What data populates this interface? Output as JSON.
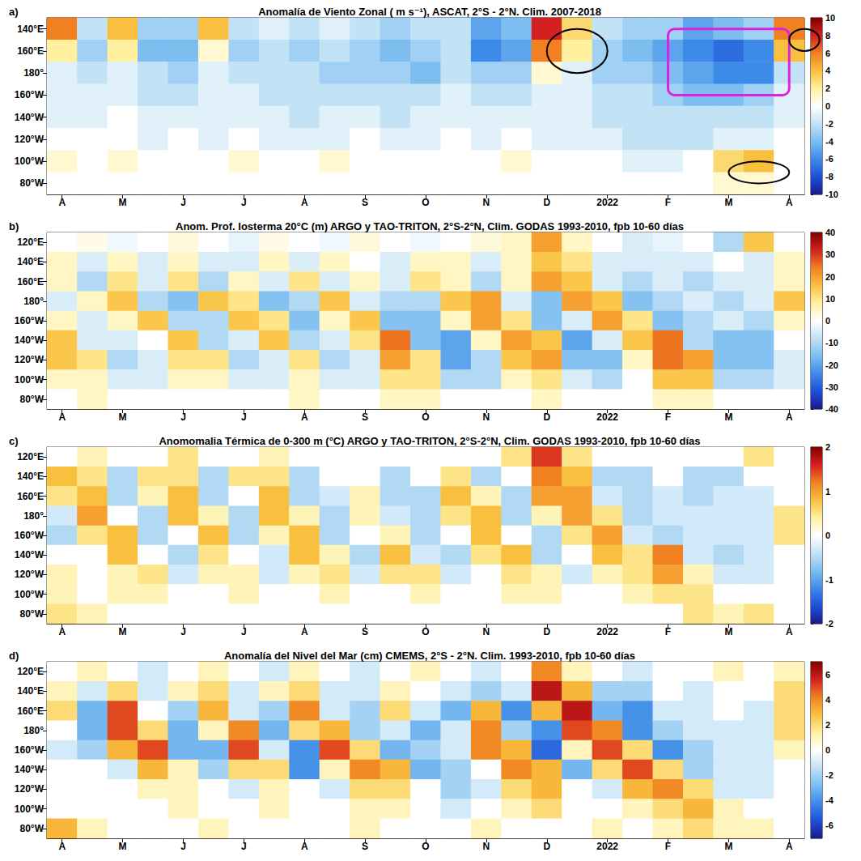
{
  "chart_data": [
    {
      "type": "heatmap",
      "panel_label": "a)",
      "title": "Anomalía de Viento Zonal ( m s⁻¹), ASCAT, 2°S - 2°N. Clim. 2007-2018",
      "x": [
        "A",
        null,
        "M",
        null,
        "J",
        null,
        "J",
        null,
        "A",
        null,
        "S",
        null,
        "O",
        null,
        "N",
        null,
        "D",
        null,
        "2022",
        null,
        "F",
        null,
        "M",
        null,
        "A"
      ],
      "y": [
        "140°E",
        "160°E",
        "180°",
        "160°W",
        "140°W",
        "120°W",
        "100°W",
        "80°W"
      ],
      "values": [
        [
          6,
          -2,
          4,
          -3,
          -3,
          4,
          -2,
          -1,
          -2,
          -1,
          -2,
          -3,
          -2,
          -2,
          -5,
          -4,
          8,
          3,
          -2,
          -3,
          -3,
          -5,
          -4,
          -3,
          6
        ],
        [
          2,
          -3,
          2,
          -4,
          -4,
          1,
          -3,
          -2,
          -3,
          -2,
          -3,
          -4,
          -3,
          -2,
          -6,
          -5,
          6,
          2,
          -3,
          -4,
          -5,
          -6,
          -7,
          -6,
          4
        ],
        [
          -1,
          -2,
          -1,
          -2,
          -3,
          -1,
          -2,
          -2,
          -2,
          -3,
          -3,
          -3,
          -4,
          -2,
          -3,
          -3,
          1,
          -1,
          -3,
          -3,
          -4,
          -5,
          -6,
          -6,
          -2
        ],
        [
          -1,
          -1,
          -1,
          -2,
          -2,
          -1,
          -1,
          -2,
          -2,
          -2,
          -2,
          -2,
          -2,
          -1,
          -2,
          -2,
          -1,
          -1,
          -2,
          -2,
          -3,
          -4,
          -4,
          -3,
          -1
        ],
        [
          -1,
          -1,
          0,
          -1,
          -1,
          -1,
          -1,
          -1,
          -2,
          -1,
          -1,
          -2,
          -1,
          -1,
          -1,
          -1,
          -1,
          -1,
          -2,
          -2,
          -2,
          -2,
          -2,
          -2,
          -1
        ],
        [
          0,
          0,
          0,
          -1,
          0,
          -1,
          0,
          -1,
          -1,
          -1,
          0,
          -1,
          -1,
          0,
          -1,
          0,
          -1,
          -1,
          -1,
          -2,
          -2,
          -2,
          -1,
          -1,
          0
        ],
        [
          1,
          0,
          1,
          0,
          0,
          0,
          1,
          0,
          0,
          1,
          0,
          0,
          0,
          0,
          0,
          1,
          0,
          0,
          0,
          -1,
          -1,
          0,
          3,
          4,
          0
        ],
        [
          0,
          0,
          0,
          0,
          0,
          0,
          0,
          0,
          0,
          0,
          0,
          0,
          0,
          0,
          0,
          0,
          0,
          0,
          0,
          0,
          0,
          0,
          1,
          1,
          0
        ]
      ],
      "color_range": [
        -10,
        10
      ],
      "color_ticks": [
        -10,
        -8,
        -6,
        -4,
        -2,
        0,
        2,
        4,
        6,
        8,
        10
      ]
    },
    {
      "type": "heatmap",
      "panel_label": "b)",
      "title": "Anom. Prof. Iosterma 20°C (m) ARGO y TAO-TRITON, 2°S-2°N, Clim. GODAS 1993-2010, fpb 10-60 días",
      "x": [
        "A",
        null,
        "M",
        null,
        "J",
        null,
        "J",
        null,
        "A",
        null,
        "S",
        null,
        "O",
        null,
        "N",
        null,
        "D",
        null,
        "2022",
        null,
        "F",
        null,
        "M",
        null,
        "A"
      ],
      "y": [
        "120°E",
        "140°E",
        "160°E",
        "180°",
        "160°W",
        "140°W",
        "120°W",
        "100°W",
        "80°W"
      ],
      "values": [
        [
          0,
          2,
          -2,
          0,
          3,
          0,
          -3,
          2,
          0,
          -2,
          3,
          0,
          -2,
          0,
          3,
          5,
          20,
          5,
          0,
          -5,
          -3,
          0,
          -10,
          15,
          0
        ],
        [
          5,
          -5,
          5,
          -5,
          5,
          -5,
          -5,
          5,
          -5,
          5,
          0,
          -5,
          5,
          5,
          -5,
          5,
          15,
          10,
          -5,
          -5,
          -5,
          -5,
          0,
          -5,
          5
        ],
        [
          5,
          -10,
          10,
          -5,
          10,
          -10,
          5,
          -5,
          10,
          -5,
          5,
          -5,
          10,
          5,
          -10,
          5,
          20,
          15,
          -5,
          -10,
          -5,
          -10,
          -5,
          -5,
          5
        ],
        [
          -5,
          5,
          15,
          -10,
          -15,
          15,
          10,
          -15,
          -10,
          15,
          -5,
          -10,
          -10,
          15,
          20,
          -5,
          -15,
          20,
          15,
          -15,
          -10,
          -5,
          -10,
          -5,
          15
        ],
        [
          5,
          -5,
          5,
          15,
          -10,
          -10,
          15,
          10,
          -15,
          5,
          15,
          -15,
          -15,
          5,
          20,
          10,
          -15,
          -5,
          20,
          10,
          -15,
          -10,
          -5,
          -10,
          5
        ],
        [
          15,
          -5,
          -5,
          0,
          15,
          -10,
          -5,
          15,
          -10,
          -5,
          10,
          25,
          -15,
          -20,
          5,
          20,
          15,
          -20,
          -5,
          15,
          25,
          -10,
          -15,
          -15,
          0
        ],
        [
          15,
          10,
          -10,
          -5,
          10,
          10,
          -10,
          -5,
          10,
          -10,
          -5,
          20,
          10,
          -20,
          -10,
          15,
          20,
          -15,
          -15,
          5,
          25,
          20,
          -15,
          -15,
          -5
        ],
        [
          5,
          5,
          -5,
          -5,
          5,
          5,
          -5,
          -5,
          5,
          -5,
          -5,
          10,
          10,
          -10,
          -10,
          5,
          10,
          -5,
          -10,
          0,
          15,
          15,
          -10,
          -10,
          -5
        ],
        [
          0,
          5,
          0,
          0,
          0,
          0,
          0,
          0,
          5,
          0,
          0,
          5,
          5,
          0,
          0,
          0,
          5,
          0,
          0,
          0,
          5,
          5,
          0,
          0,
          0
        ]
      ],
      "color_range": [
        -40,
        40
      ],
      "color_ticks": [
        -40,
        -30,
        -20,
        -10,
        0,
        10,
        20,
        30,
        40
      ]
    },
    {
      "type": "heatmap",
      "panel_label": "c)",
      "title": "Anomomalia Térmica de 0-300 m (°C) ARGO y TAO-TRITON, 2°S-2°N, Clim. GODAS 1993-2010, fpb 10-60 días",
      "x": [
        "A",
        null,
        "M",
        null,
        "J",
        null,
        "J",
        null,
        "A",
        null,
        "S",
        null,
        "O",
        null,
        "N",
        null,
        "D",
        null,
        "2022",
        null,
        "F",
        null,
        "M",
        null,
        "A"
      ],
      "y": [
        "120°E",
        "140°E",
        "160°E",
        "180°",
        "160°W",
        "140°W",
        "120°W",
        "100°W",
        "80°W"
      ],
      "values": [
        [
          0,
          0.3,
          0,
          0,
          0.5,
          0,
          0,
          0.3,
          0,
          0,
          0,
          0,
          0,
          0,
          0,
          0.5,
          1.5,
          0.5,
          0,
          0,
          0,
          0,
          0,
          0.5,
          0
        ],
        [
          0.8,
          0.5,
          -0.5,
          0.5,
          0.5,
          -0.5,
          0.5,
          0.5,
          -0.5,
          0,
          0,
          -0.5,
          0,
          0.5,
          -0.5,
          0,
          1.2,
          0.8,
          -0.5,
          -0.5,
          0,
          -0.5,
          -0.5,
          0,
          0
        ],
        [
          0.5,
          0.8,
          -0.5,
          0.3,
          0.8,
          -0.5,
          0,
          0.8,
          -0.5,
          -0.3,
          0.3,
          -0.5,
          -0.5,
          0.8,
          0.3,
          -0.5,
          1,
          1,
          -0.3,
          -0.5,
          -0.3,
          -0.5,
          -0.3,
          -0.3,
          0
        ],
        [
          -0.3,
          1,
          0,
          -0.5,
          0.8,
          0.3,
          -0.5,
          0.8,
          0.3,
          -0.5,
          0.3,
          -0.3,
          -0.5,
          0.5,
          0.8,
          -0.5,
          0.3,
          1,
          0.5,
          -0.5,
          -0.3,
          -0.3,
          -0.3,
          -0.3,
          0.5
        ],
        [
          -0.5,
          0.5,
          0.8,
          -0.5,
          0,
          0.8,
          -0.5,
          0.3,
          0.8,
          -0.5,
          0,
          0.3,
          -0.5,
          0,
          0.8,
          0,
          -0.5,
          0.5,
          1,
          -0.3,
          -0.5,
          -0.3,
          -0.3,
          -0.3,
          0.5
        ],
        [
          0,
          0,
          0.8,
          0,
          -0.5,
          0.5,
          0,
          -0.3,
          0.8,
          0.3,
          -0.5,
          0.8,
          -0.3,
          -0.5,
          0.5,
          0.8,
          -0.5,
          0,
          0.8,
          0.5,
          1.2,
          -0.3,
          -0.5,
          -0.3,
          0
        ],
        [
          0.3,
          0,
          0.3,
          0.5,
          -0.3,
          0.3,
          0.3,
          -0.3,
          0.3,
          0.5,
          -0.3,
          0.5,
          0.5,
          -0.3,
          0,
          0.5,
          0.3,
          -0.3,
          0.3,
          0.5,
          1,
          0.3,
          -0.3,
          -0.3,
          0
        ],
        [
          0.3,
          0,
          0.3,
          0.3,
          0,
          0,
          0.3,
          0,
          0,
          0.3,
          0,
          0,
          0.3,
          0,
          0,
          0.3,
          0.3,
          0,
          0,
          0.3,
          0.5,
          0.5,
          0,
          0,
          0
        ],
        [
          0.5,
          0.3,
          0,
          0,
          0,
          0,
          0,
          0,
          0,
          0,
          0,
          0,
          0,
          0,
          0,
          0,
          0,
          0,
          0,
          0,
          0,
          0.5,
          0.3,
          0.5,
          0
        ]
      ],
      "color_range": [
        -2,
        2
      ],
      "color_ticks": [
        -2,
        -1,
        0,
        1,
        2
      ]
    },
    {
      "type": "heatmap",
      "panel_label": "d)",
      "title": "Anomalía del Nivel del Mar (cm) CMEMS, 2°S - 2°N. Clim. 1993-2010, fpb 10-60 días",
      "x": [
        "A",
        null,
        "M",
        null,
        "J",
        null,
        "J",
        null,
        "A",
        null,
        "S",
        null,
        "O",
        null,
        "N",
        null,
        "D",
        null,
        "2022",
        null,
        "F",
        null,
        "M",
        null,
        "A"
      ],
      "y": [
        "120°E",
        "140°E",
        "160°E",
        "180°",
        "160°W",
        "140°W",
        "120°W",
        "100°W",
        "80°W"
      ],
      "values": [
        [
          0,
          1,
          0,
          -1,
          0,
          1,
          0,
          -1,
          1,
          0,
          -1,
          0,
          1,
          0,
          -1,
          0,
          4,
          1,
          0,
          -1,
          0,
          0,
          1,
          0,
          1
        ],
        [
          1,
          -1,
          2,
          -1,
          1,
          2,
          -1,
          1,
          2,
          -1,
          -1,
          1,
          0,
          -1,
          -2,
          -1,
          6,
          3,
          -2,
          -2,
          0,
          -1,
          0,
          0,
          2
        ],
        [
          2,
          -3,
          5,
          0,
          -2,
          3,
          -1,
          -2,
          4,
          -1,
          -2,
          2,
          -1,
          -3,
          3,
          -4,
          3,
          6,
          -3,
          -4,
          -1,
          -1,
          0,
          -1,
          2
        ],
        [
          0,
          -3,
          5,
          2,
          -3,
          1,
          4,
          -3,
          2,
          3,
          -2,
          -1,
          -3,
          -1,
          4,
          -2,
          -4,
          5,
          4,
          -4,
          -2,
          -1,
          -1,
          -1,
          2
        ],
        [
          -1,
          -2,
          3,
          5,
          -3,
          -3,
          5,
          -1,
          -4,
          5,
          2,
          -3,
          -2,
          -1,
          4,
          3,
          -5,
          1,
          5,
          2,
          -4,
          -2,
          -1,
          -1,
          1
        ],
        [
          0,
          0,
          -1,
          3,
          1,
          -2,
          2,
          2,
          -4,
          1,
          4,
          3,
          -3,
          -2,
          0,
          4,
          3,
          -3,
          2,
          5,
          2,
          -2,
          -1,
          -1,
          0
        ],
        [
          0,
          0,
          0,
          1,
          1,
          0,
          -1,
          1,
          0,
          -1,
          2,
          2,
          0,
          -2,
          -1,
          2,
          3,
          0,
          -1,
          3,
          4,
          2,
          -1,
          -1,
          0
        ],
        [
          0,
          0,
          0,
          0,
          1,
          0,
          0,
          1,
          0,
          0,
          1,
          1,
          0,
          -1,
          0,
          1,
          2,
          0,
          0,
          1,
          2,
          3,
          1,
          0,
          0
        ],
        [
          3,
          1,
          0,
          0,
          0,
          1,
          0,
          0,
          0,
          0,
          1,
          0,
          0,
          0,
          1,
          0,
          0,
          0,
          1,
          0,
          1,
          2,
          1,
          1,
          0
        ]
      ],
      "color_range": [
        -7,
        7
      ],
      "color_ticks": [
        -6,
        -4,
        -2,
        0,
        2,
        4,
        6
      ]
    }
  ]
}
